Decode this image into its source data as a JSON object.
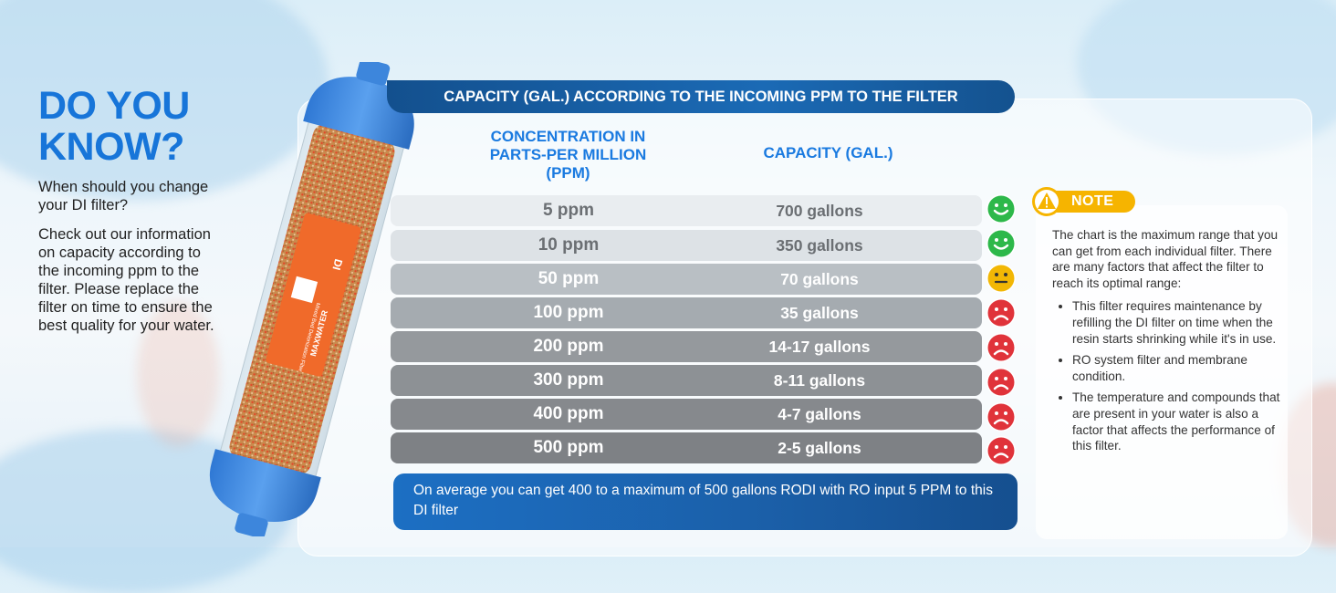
{
  "sidebar": {
    "title": "DO YOU KNOW?",
    "question": "When should you change your DI filter?",
    "body": "Check out our information on capacity according to the incoming ppm to the filter. Please replace the filter on time to ensure the best quality for your water."
  },
  "product": {
    "brand": "MAXWATER",
    "type": "DI",
    "label": "Mixed Bed Deionization Filter"
  },
  "table": {
    "banner": "CAPACITY (GAL.) ACCORDING TO THE INCOMING PPM TO THE FILTER",
    "col_ppm": "CONCENTRATION IN PARTS-PER MILLION (PPM)",
    "col_cap": "CAPACITY (GAL.)",
    "rows": [
      {
        "ppm": "5 ppm",
        "capacity": "700 gallons",
        "rating": "happy"
      },
      {
        "ppm": "10 ppm",
        "capacity": "350 gallons",
        "rating": "happy"
      },
      {
        "ppm": "50 ppm",
        "capacity": "70 gallons",
        "rating": "neutral"
      },
      {
        "ppm": "100 ppm",
        "capacity": "35 gallons",
        "rating": "sad"
      },
      {
        "ppm": "200 ppm",
        "capacity": "14-17 gallons",
        "rating": "sad"
      },
      {
        "ppm": "300 ppm",
        "capacity": "8-11 gallons",
        "rating": "sad"
      },
      {
        "ppm": "400 ppm",
        "capacity": "4-7 gallons",
        "rating": "sad"
      },
      {
        "ppm": "500 ppm",
        "capacity": "2-5 gallons",
        "rating": "sad"
      }
    ],
    "footer": "On average you can get 400 to a maximum of 500 gallons RODI with RO input 5 PPM to this DI filter"
  },
  "note": {
    "label": "NOTE",
    "intro": "The chart is the maximum range that you can get from each individual filter. There are many factors that affect the filter to reach its optimal range:",
    "items": [
      "This filter requires maintenance by refilling the DI filter on time when the resin starts shrinking while it's in use.",
      "RO system filter and membrane condition.",
      "The temperature and compounds that are present in your water is also a factor that affects the performance of this filter."
    ]
  },
  "colors": {
    "accent": "#1a7ae0",
    "happy": "#2db84a",
    "neutral": "#f2b705",
    "sad": "#e0333a"
  }
}
